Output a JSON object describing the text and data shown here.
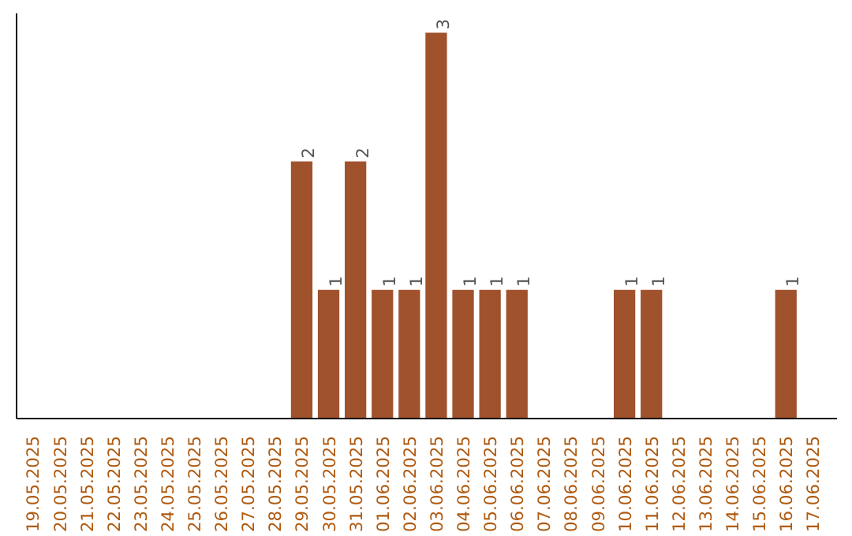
{
  "chart_data": {
    "type": "bar",
    "categories": [
      "19.05.2025",
      "20.05.2025",
      "21.05.2025",
      "22.05.2025",
      "23.05.2025",
      "24.05.2025",
      "25.05.2025",
      "26.05.2025",
      "27.05.2025",
      "28.05.2025",
      "29.05.2025",
      "30.05.2025",
      "31.05.2025",
      "01.06.2025",
      "02.06.2025",
      "03.06.2025",
      "04.06.2025",
      "05.06.2025",
      "06.06.2025",
      "07.06.2025",
      "08.06.2025",
      "09.06.2025",
      "10.06.2025",
      "11.06.2025",
      "12.06.2025",
      "13.06.2025",
      "14.06.2025",
      "15.06.2025",
      "16.06.2025",
      "17.06.2025"
    ],
    "values": [
      0,
      0,
      0,
      0,
      0,
      0,
      0,
      0,
      0,
      0,
      2,
      1,
      2,
      1,
      1,
      3,
      1,
      1,
      1,
      0,
      0,
      0,
      1,
      1,
      0,
      0,
      0,
      0,
      1,
      0
    ],
    "value_labels": [
      null,
      null,
      null,
      null,
      null,
      null,
      null,
      null,
      null,
      null,
      "2",
      "1",
      "2",
      "1",
      "1",
      "3",
      "1",
      "1",
      "1",
      null,
      null,
      null,
      "1",
      "1",
      null,
      null,
      null,
      null,
      "1",
      null
    ],
    "color": "#a0522d",
    "tick_labels": "x"
  }
}
